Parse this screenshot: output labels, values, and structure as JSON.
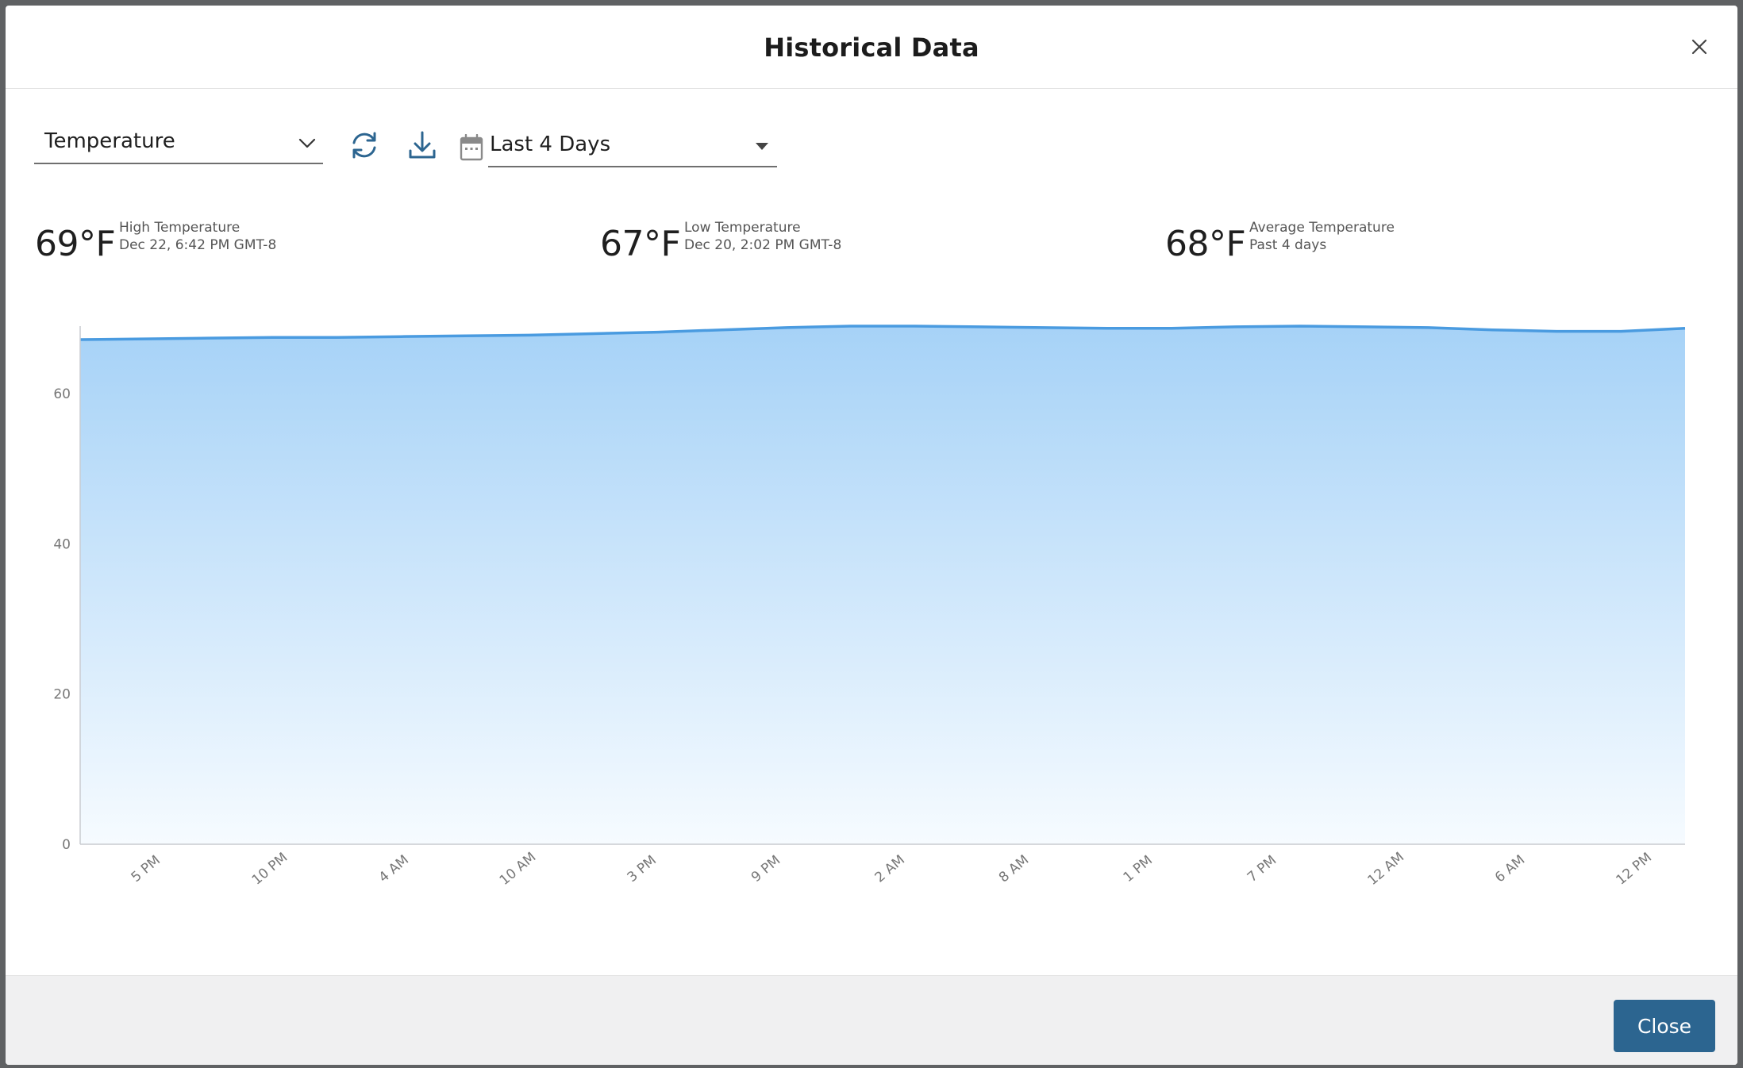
{
  "modal": {
    "title": "Historical Data",
    "close_button_label": "Close"
  },
  "toolbar": {
    "metric_value": "Temperature",
    "range_value": "Last 4 Days",
    "icons": [
      "chevron-down-icon",
      "refresh-icon",
      "download-icon",
      "calendar-icon",
      "caret-down-icon",
      "close-icon"
    ]
  },
  "stats": {
    "high": {
      "value": "69°F",
      "label": "High Temperature",
      "sub": "Dec 22, 6:42 PM GMT-8"
    },
    "low": {
      "value": "67°F",
      "label": "Low Temperature",
      "sub": "Dec 20, 2:02 PM GMT-8"
    },
    "avg": {
      "value": "68°F",
      "label": "Average Temperature",
      "sub": "Past 4 days"
    }
  },
  "colors": {
    "accent": "#2c6590",
    "line": "#4a9be0",
    "fill_top": "#a6d2f7",
    "fill_bottom": "#f6fbff"
  },
  "chart_data": {
    "type": "area",
    "title": "",
    "xlabel": "",
    "ylabel": "",
    "ylim": [
      0,
      69
    ],
    "yticks": [
      0,
      20,
      40,
      60
    ],
    "grid": true,
    "legend": "none",
    "categories": [
      "5 PM",
      "10 PM",
      "4 AM",
      "10 AM",
      "3 PM",
      "9 PM",
      "2 AM",
      "8 AM",
      "1 PM",
      "7 PM",
      "12 AM",
      "6 AM",
      "12 PM"
    ],
    "x": [
      0,
      0.5,
      1,
      1.5,
      2,
      2.5,
      3,
      3.5,
      4,
      4.5,
      5,
      5.5,
      6,
      6.5,
      7,
      7.5,
      8,
      8.5,
      9,
      9.5,
      10,
      10.5,
      11,
      11.5,
      12,
      12.5
    ],
    "series": [
      {
        "values": [
          67.2,
          67.3,
          67.4,
          67.5,
          67.5,
          67.6,
          67.7,
          67.8,
          68.0,
          68.2,
          68.5,
          68.8,
          69.0,
          69.0,
          68.9,
          68.8,
          68.7,
          68.7,
          68.9,
          69.0,
          68.9,
          68.8,
          68.5,
          68.3,
          68.3,
          68.7
        ]
      }
    ]
  }
}
